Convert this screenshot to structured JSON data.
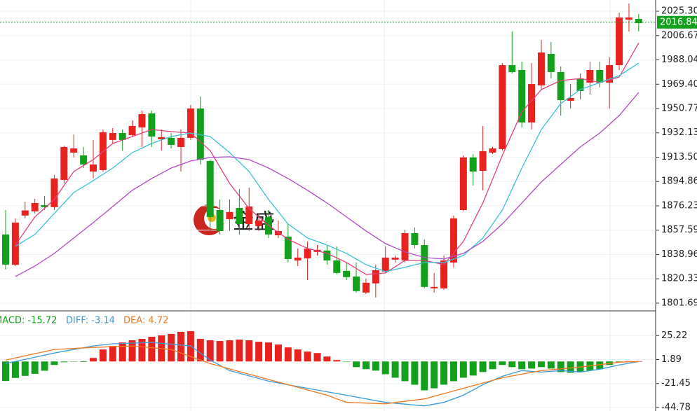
{
  "chart_data": [
    {
      "type": "candlestick",
      "up_color": "#e8231f",
      "down_color": "#12a01d",
      "grid": true,
      "ylim": [
        1796.3,
        2033.9
      ],
      "yticks": [
        {
          "value": 2025.3,
          "label": "2025.30"
        },
        2006.67,
        1988.04,
        {
          "value": 1969.4,
          "label": "1969.40"
        },
        1950.77,
        1932.13,
        {
          "value": 1913.5,
          "label": "1913.50"
        },
        1894.86,
        1876.23,
        1857.59,
        1838.96,
        1820.33,
        1801.69
      ],
      "last_price": 2016.84,
      "last_price_color": "#12a01d",
      "watermark": "金盛",
      "open": [
        1854.3,
        1831.0,
        1868.8,
        1872.0,
        1876.8,
        1875.2,
        1896.1,
        1917.0,
        1914.9,
        1902.5,
        1903.6,
        1926.7,
        1932.0,
        1930.4,
        1936.3,
        1947.0,
        1927.2,
        1928.3,
        1921.3,
        1928.3,
        1950.8,
        1910.6,
        1873.0,
        1866.0,
        1874.6,
        1862.3,
        1860.7,
        1867.7,
        1853.7,
        1852.7,
        1834.4,
        1836.0,
        1840.9,
        1842.0,
        1834.4,
        1826.4,
        1822.1,
        1809.8,
        1816.8,
        1825.8,
        1835.0,
        1834.4,
        1855.3,
        1846.2,
        1813.0,
        1813.0,
        1832.8,
        1873.0,
        1913.3,
        1903.0,
        1917.0,
        1919.7,
        1984.0,
        1980.3,
        1940.1,
        1968.5,
        1992.6,
        1978.7,
        1956.7,
        1973.8,
        1970.6,
        1980.3,
        1970.6,
        1984.0,
        2018.9,
        2019.4
      ],
      "high": [
        1873.0,
        1866.6,
        1879.5,
        1881.6,
        1883.8,
        1899.9,
        1922.4,
        1931.0,
        1921.3,
        1926.7,
        1934.7,
        1935.8,
        1934.7,
        1941.7,
        1949.2,
        1949.2,
        1934.7,
        1932.0,
        1934.7,
        1953.5,
        1959.9,
        1911.6,
        1881.1,
        1881.1,
        1889.1,
        1890.2,
        1870.4,
        1873.0,
        1865.0,
        1862.3,
        1843.6,
        1848.9,
        1846.2,
        1846.2,
        1845.2,
        1832.8,
        1832.8,
        1820.5,
        1831.2,
        1845.2,
        1838.2,
        1858.0,
        1859.6,
        1850.5,
        1824.8,
        1838.2,
        1868.8,
        1914.9,
        1915.9,
        1937.4,
        1921.3,
        1985.6,
        2009.8,
        1986.7,
        1985.6,
        2003.3,
        2001.7,
        1983.0,
        1969.6,
        1977.6,
        1986.7,
        1986.7,
        1989.9,
        2024.2,
        2031.2,
        2023.2
      ],
      "low": [
        1827.5,
        1830.1,
        1866.6,
        1870.4,
        1873.0,
        1873.0,
        1893.4,
        1913.3,
        1905.2,
        1897.2,
        1902.5,
        1924.0,
        1918.6,
        1929.3,
        1921.3,
        1921.3,
        1918.6,
        1920.2,
        1902.5,
        1926.7,
        1907.9,
        1857.0,
        1854.3,
        1857.0,
        1854.3,
        1857.0,
        1857.0,
        1851.6,
        1851.6,
        1832.8,
        1830.1,
        1819.4,
        1838.2,
        1831.2,
        1823.7,
        1819.4,
        1809.8,
        1808.7,
        1806.0,
        1824.8,
        1832.8,
        1832.8,
        1843.6,
        1813.0,
        1809.8,
        1811.9,
        1829.1,
        1872.0,
        1891.8,
        1888.1,
        1915.9,
        1918.6,
        1977.6,
        1936.3,
        1934.7,
        1965.3,
        1973.8,
        1945.4,
        1950.8,
        1957.8,
        1961.5,
        1966.9,
        1950.8,
        1980.3,
        2009.8,
        2009.8
      ],
      "close": [
        1831.2,
        1863.4,
        1872.7,
        1878.4,
        1875.2,
        1897.2,
        1921.3,
        1920.2,
        1907.9,
        1907.9,
        1932.6,
        1932.0,
        1926.7,
        1937.4,
        1946.5,
        1929.3,
        1928.8,
        1922.9,
        1928.3,
        1950.8,
        1911.6,
        1867.7,
        1856.9,
        1871.5,
        1862.3,
        1875.7,
        1865.0,
        1854.3,
        1856.9,
        1835.5,
        1836.6,
        1843.5,
        1842.5,
        1834.4,
        1824.8,
        1821.6,
        1810.9,
        1817.3,
        1826.9,
        1836.6,
        1836.6,
        1855.3,
        1846.2,
        1814.1,
        1814.1,
        1834.4,
        1866.6,
        1913.3,
        1902.5,
        1918.1,
        1920.2,
        1984.0,
        1978.7,
        1940.1,
        1969.5,
        1993.7,
        1978.7,
        1957.2,
        1958.8,
        1964.2,
        1980.3,
        1970.6,
        1984.0,
        2020.5,
        2020.5,
        2016.2
      ],
      "series": [
        {
          "color": "#e0407a",
          "x": [
            1,
            3,
            5,
            7,
            9,
            11,
            13,
            15,
            17,
            19,
            21,
            23,
            25,
            27,
            29,
            31,
            33,
            35,
            37,
            39,
            41,
            43,
            45,
            47,
            49,
            51,
            53,
            55,
            57,
            59,
            61,
            63,
            65
          ],
          "values": [
            1846.2,
            1867.7,
            1881.1,
            1902.5,
            1911.6,
            1924.0,
            1929.3,
            1934.7,
            1933.1,
            1932.0,
            1918.6,
            1893.4,
            1874.1,
            1861.2,
            1850.5,
            1843.6,
            1839.8,
            1832.8,
            1823.7,
            1824.8,
            1834.4,
            1834.4,
            1831.2,
            1848.9,
            1878.4,
            1914.9,
            1948.1,
            1965.3,
            1972.2,
            1973.8,
            1970.6,
            1974.9,
            2001.0
          ]
        },
        {
          "color": "#3cc0d8",
          "x": [
            1,
            3,
            5,
            7,
            9,
            11,
            13,
            15,
            17,
            19,
            21,
            23,
            25,
            27,
            29,
            31,
            33,
            35,
            37,
            39,
            41,
            43,
            45,
            47,
            49,
            51,
            53,
            55,
            57,
            59,
            61,
            63,
            65
          ],
          "values": [
            1845.2,
            1854.3,
            1870.4,
            1886.4,
            1895.6,
            1905.2,
            1917.0,
            1924.0,
            1929.3,
            1932.0,
            1929.3,
            1917.0,
            1902.5,
            1881.1,
            1862.3,
            1851.6,
            1846.2,
            1839.8,
            1831.2,
            1825.9,
            1829.1,
            1832.8,
            1832.8,
            1838.2,
            1851.6,
            1873.0,
            1905.2,
            1934.7,
            1954.5,
            1965.3,
            1970.6,
            1976.0,
            1985.6
          ]
        },
        {
          "color": "#b04ac8",
          "x": [
            1,
            3,
            5,
            7,
            9,
            11,
            13,
            15,
            17,
            19,
            21,
            23,
            25,
            27,
            29,
            31,
            33,
            35,
            37,
            39,
            41,
            43,
            45,
            47,
            49,
            51,
            53,
            55,
            57,
            59,
            61,
            63,
            65
          ],
          "values": [
            1822.1,
            1830.1,
            1839.8,
            1851.6,
            1863.4,
            1875.7,
            1888.1,
            1897.2,
            1905.2,
            1910.6,
            1913.3,
            1913.8,
            1911.6,
            1905.2,
            1897.2,
            1888.1,
            1878.4,
            1867.7,
            1857.0,
            1847.3,
            1840.9,
            1836.6,
            1835.5,
            1839.8,
            1848.9,
            1862.3,
            1878.4,
            1894.5,
            1907.9,
            1921.3,
            1932.0,
            1945.4,
            1963.1
          ]
        }
      ]
    },
    {
      "type": "macd",
      "up_color": "#e8231f",
      "down_color": "#12a01d",
      "grid": true,
      "ylim": [
        -48.2,
        48.56
      ],
      "yticks": [
        25.22,
        1.89,
        -21.45,
        -44.78
      ],
      "series": [
        {
          "name": "MACD: -15.72",
          "color": "#12a01d",
          "values": [
            -19,
            -16,
            -14,
            -12,
            -9,
            -3.4,
            -0.7,
            -0.3,
            -0.5,
            3.4,
            11.7,
            15.1,
            18.5,
            20.6,
            22,
            24,
            25.4,
            26.8,
            28.8,
            29.5,
            22,
            20.6,
            19.9,
            20.6,
            21.3,
            20.6,
            19.2,
            18.5,
            16.5,
            13.7,
            11.7,
            9.6,
            8.2,
            4.8,
            1.4,
            -0.3,
            -5.5,
            -7.5,
            -8.9,
            -12.4,
            -15.8,
            -19.2,
            -22.6,
            -28.1,
            -26.1,
            -22.6,
            -19.2,
            -15.8,
            -13.7,
            -10.3,
            -7.5,
            -3.4,
            -5.5,
            -7.5,
            -6.9,
            -5.5,
            -6.9,
            -10.3,
            -11,
            -10.3,
            -8.9,
            -7.5,
            -3.4,
            -0.7,
            0.3,
            0.2
          ]
        },
        {
          "name": "DIFF: -3.14",
          "color": "#3a9ad9",
          "x": [
            0,
            5,
            9,
            11,
            15,
            19,
            21,
            23,
            27,
            31,
            35,
            39,
            43,
            45,
            47,
            49,
            51,
            53,
            55,
            57,
            59,
            61,
            63,
            65
          ],
          "values": [
            -2,
            8.2,
            15.1,
            17.2,
            18.5,
            15.1,
            1.4,
            -8.9,
            -19.2,
            -26.1,
            -32.9,
            -39.8,
            -43.2,
            -39.8,
            -32.9,
            -22.6,
            -14.4,
            -8.9,
            -10.3,
            -8.9,
            -10.3,
            -7.5,
            -3.4,
            0
          ]
        },
        {
          "name": "DEA: 4.72",
          "color": "#f07820",
          "x": [
            0,
            5,
            9,
            13,
            17,
            21,
            25,
            29,
            33,
            35,
            39,
            43,
            47,
            51,
            55,
            59,
            63,
            65
          ],
          "values": [
            1.4,
            11.7,
            13.7,
            15.1,
            11.7,
            -2.1,
            -12.4,
            -22.6,
            -32.9,
            -39.8,
            -41.2,
            -36.4,
            -26.1,
            -15.8,
            -8.9,
            -5.5,
            -0.7,
            0
          ]
        }
      ]
    }
  ]
}
